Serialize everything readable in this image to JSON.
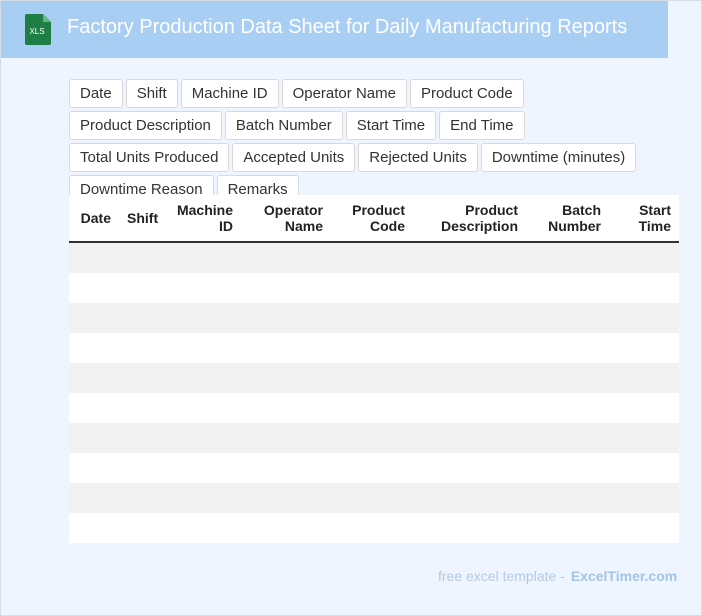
{
  "header": {
    "icon_label": "XLS",
    "title": "Factory Production Data Sheet for Daily Manufacturing Reports"
  },
  "tags": [
    "Date",
    "Shift",
    "Machine ID",
    "Operator Name",
    "Product Code",
    "Product Description",
    "Batch Number",
    "Start Time",
    "End Time",
    "Total Units Produced",
    "Accepted Units",
    "Rejected Units",
    "Downtime (minutes)",
    "Downtime Reason",
    "Remarks"
  ],
  "table": {
    "columns": [
      "Date",
      "Shift",
      "Machine ID",
      "Operator Name",
      "Product Code",
      "Product Description",
      "Batch Number",
      "Start Time"
    ]
  },
  "footer": {
    "text": "free excel template -",
    "brand": "ExcelTimer.com"
  }
}
